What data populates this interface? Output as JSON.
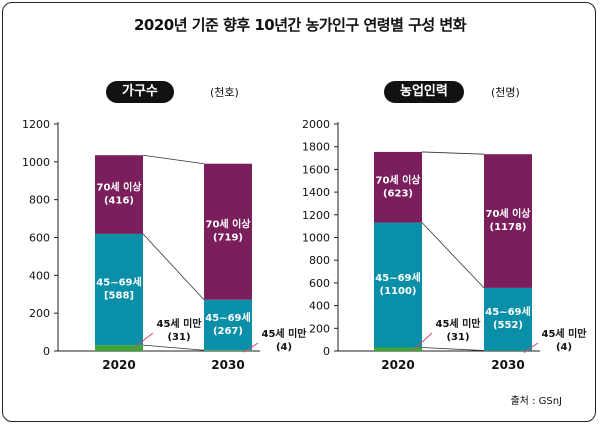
{
  "title": "2020년 기준 향후 10년간 농가인구 연령별 구성 변화",
  "source": "출처 : GSnJ",
  "colors": {
    "under45": "#3fa535",
    "age45_69": "#0a8fa8",
    "age70plus": "#7a1f5c",
    "text_light": "#ffffff",
    "connector": "#333333",
    "pointer": "#e0457a"
  },
  "chart_data": [
    {
      "type": "bar",
      "stacked": true,
      "badge": "가구수",
      "unit": "(천호)",
      "categories": [
        "2020",
        "2030"
      ],
      "ylim": [
        0,
        1200
      ],
      "yticks": [
        "0",
        "200",
        "400",
        "600",
        "800",
        "1000",
        "1200"
      ],
      "ytick_values": [
        0,
        200,
        400,
        600,
        800,
        1000,
        1200
      ],
      "series": [
        {
          "key": "under45",
          "values": [
            31,
            4
          ],
          "labels": [
            "45세 미만\n(31)",
            "45세 미만\n(4)"
          ]
        },
        {
          "key": "age45_69",
          "values": [
            588,
            267
          ],
          "labels": [
            "45~69세\n[588]",
            "45~69세\n(267)"
          ]
        },
        {
          "key": "age70plus",
          "values": [
            416,
            719
          ],
          "labels": [
            "70세 이상\n(416)",
            "70세 이상\n(719)"
          ]
        }
      ]
    },
    {
      "type": "bar",
      "stacked": true,
      "badge": "농업인력",
      "unit": "(천명)",
      "categories": [
        "2020",
        "2030"
      ],
      "ylim": [
        0,
        2000
      ],
      "yticks": [
        "0",
        "200",
        "400",
        "600",
        "800",
        "1000",
        "1200",
        "1400",
        "1600",
        "1800",
        "2000"
      ],
      "ytick_values": [
        0,
        200,
        400,
        600,
        800,
        1000,
        1200,
        1400,
        1600,
        1800,
        2000
      ],
      "series": [
        {
          "key": "under45",
          "values": [
            31,
            4
          ],
          "labels": [
            "45세 미만\n(31)",
            "45세 미만\n(4)"
          ]
        },
        {
          "key": "age45_69",
          "values": [
            1100,
            552
          ],
          "labels": [
            "45~69세\n(1100)",
            "45~69세\n(552)"
          ]
        },
        {
          "key": "age70plus",
          "values": [
            623,
            1178
          ],
          "labels": [
            "70세 이상\n(623)",
            "70세 이상\n(1178)"
          ]
        }
      ]
    }
  ]
}
